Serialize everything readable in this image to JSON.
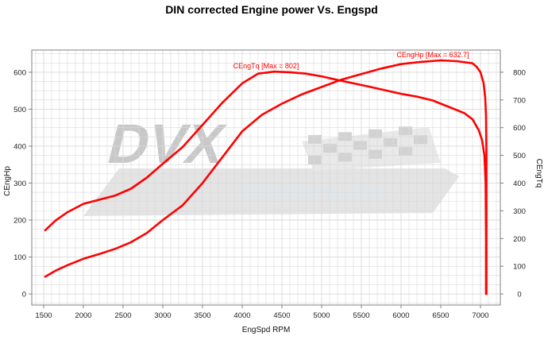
{
  "chart_data": {
    "type": "line",
    "title": "DIN corrected Engine power Vs. Engspd",
    "xlabel": "EngSpd RPM",
    "ylabel_left": "CEngHp",
    "ylabel_right": "CEngTq",
    "xlim": [
      1350,
      7250
    ],
    "ylim_left": [
      -30,
      660
    ],
    "ylim_right": [
      -40,
      880
    ],
    "x_ticks": [
      1500,
      2000,
      2500,
      3000,
      3500,
      4000,
      4500,
      5000,
      5500,
      6000,
      6500,
      7000
    ],
    "y_left_ticks": [
      0,
      100,
      200,
      300,
      400,
      500,
      600
    ],
    "y_right_ticks": [
      0,
      100,
      200,
      300,
      400,
      500,
      600,
      700,
      800
    ],
    "grid": true,
    "series": [
      {
        "name": "CEngTq",
        "axis": "right",
        "color": "#ff0000",
        "annotation": "CEngTq [Max = 802]",
        "points": [
          [
            1520,
            230
          ],
          [
            1650,
            265
          ],
          [
            1800,
            295
          ],
          [
            2000,
            325
          ],
          [
            2200,
            340
          ],
          [
            2400,
            355
          ],
          [
            2600,
            380
          ],
          [
            2800,
            420
          ],
          [
            3000,
            470
          ],
          [
            3250,
            530
          ],
          [
            3500,
            610
          ],
          [
            3750,
            690
          ],
          [
            4000,
            760
          ],
          [
            4200,
            795
          ],
          [
            4400,
            802
          ],
          [
            4600,
            800
          ],
          [
            4800,
            795
          ],
          [
            5000,
            785
          ],
          [
            5200,
            772
          ],
          [
            5400,
            760
          ],
          [
            5600,
            748
          ],
          [
            5800,
            735
          ],
          [
            6000,
            722
          ],
          [
            6200,
            712
          ],
          [
            6400,
            698
          ],
          [
            6600,
            675
          ],
          [
            6800,
            652
          ],
          [
            6900,
            630
          ],
          [
            6980,
            590
          ],
          [
            7020,
            555
          ],
          [
            7050,
            500
          ],
          [
            7065,
            400
          ],
          [
            7070,
            200
          ],
          [
            7070,
            0
          ]
        ]
      },
      {
        "name": "CEngHp",
        "axis": "left",
        "color": "#ff0000",
        "annotation": "CEngHp [Max = 632.7]",
        "points": [
          [
            1520,
            47
          ],
          [
            1650,
            63
          ],
          [
            1800,
            78
          ],
          [
            2000,
            95
          ],
          [
            2200,
            108
          ],
          [
            2400,
            122
          ],
          [
            2600,
            140
          ],
          [
            2800,
            165
          ],
          [
            3000,
            200
          ],
          [
            3250,
            240
          ],
          [
            3500,
            300
          ],
          [
            3750,
            370
          ],
          [
            4000,
            440
          ],
          [
            4250,
            485
          ],
          [
            4500,
            515
          ],
          [
            4750,
            540
          ],
          [
            5000,
            560
          ],
          [
            5250,
            580
          ],
          [
            5500,
            595
          ],
          [
            5750,
            610
          ],
          [
            6000,
            622
          ],
          [
            6250,
            628
          ],
          [
            6500,
            632
          ],
          [
            6700,
            630
          ],
          [
            6900,
            624
          ],
          [
            6950,
            615
          ],
          [
            7000,
            600
          ],
          [
            7040,
            570
          ],
          [
            7060,
            530
          ],
          [
            7070,
            480
          ],
          [
            7075,
            380
          ],
          [
            7075,
            200
          ],
          [
            7075,
            0
          ]
        ]
      }
    ]
  },
  "watermark": {
    "logo_text": "DVX",
    "sub_text": "PERFORMANCE",
    "color": "#c8c8c8"
  },
  "colors": {
    "series": "#ff0000",
    "grid": "#d9d9d9",
    "frame": "#808080"
  }
}
